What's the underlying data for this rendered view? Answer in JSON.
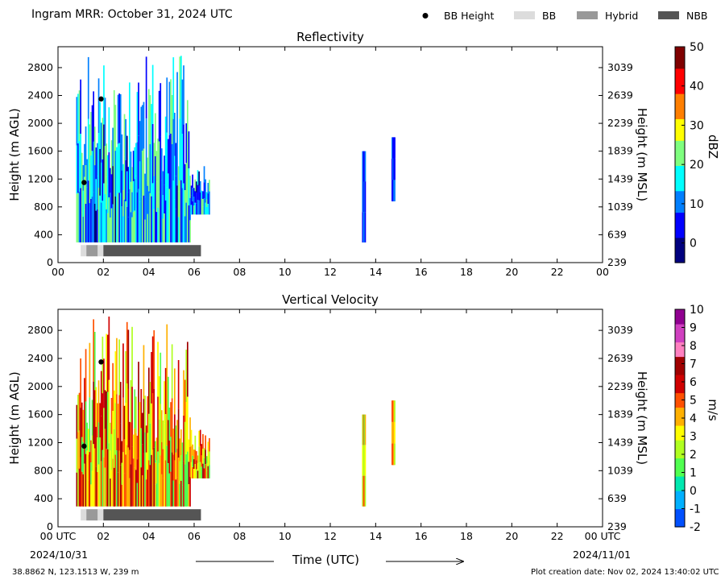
{
  "header": {
    "title": "Ingram MRR:  October 31, 2024 UTC"
  },
  "legend": {
    "placement": "top-right",
    "items": [
      {
        "label": "BB Height",
        "symbol": "dot",
        "color": "#000000"
      },
      {
        "label": "BB",
        "symbol": "box",
        "color": "#dcdcdc"
      },
      {
        "label": "Hybrid",
        "symbol": "box",
        "color": "#999999"
      },
      {
        "label": "NBB",
        "symbol": "box",
        "color": "#555555"
      }
    ]
  },
  "footer": {
    "location": "38.8862 N, 123.1513 W, 239 m",
    "creation": "Plot creation date: Nov 02, 2024 13:40:02 UTC",
    "start_date": "2024/10/31",
    "end_date": "2024/11/01",
    "xlabel": "Time (UTC)"
  },
  "chart_data": [
    {
      "type": "heatmap",
      "title": "Reflectivity",
      "ylabel": "Height (m AGL)",
      "ylabel_right": "Height (m MSL)",
      "xlim": [
        0,
        24
      ],
      "ylim": [
        0,
        3100
      ],
      "x_ticks": [
        "00",
        "02",
        "04",
        "06",
        "08",
        "10",
        "12",
        "14",
        "16",
        "18",
        "20",
        "22",
        "00"
      ],
      "y_ticks": [
        0,
        400,
        800,
        1200,
        1600,
        2000,
        2400,
        2800
      ],
      "y_ticks_right": [
        239,
        639,
        1039,
        1439,
        1839,
        2239,
        2639,
        3039
      ],
      "colorbar": {
        "label": "dBZ",
        "min": -5,
        "max": 50,
        "ticks": [
          0,
          10,
          20,
          30,
          40,
          50
        ],
        "colormap": "jet",
        "colors": [
          "#00007f",
          "#0000ff",
          "#007fff",
          "#00ffff",
          "#7fff7f",
          "#ffff00",
          "#ff7f00",
          "#ff0000",
          "#7f0000"
        ]
      },
      "bb_height_points": [
        {
          "time": 1.15,
          "height": 1150
        },
        {
          "time": 1.9,
          "height": 2350
        }
      ],
      "precip_type_bar": [
        {
          "type": "BB",
          "start": 1.0,
          "end": 1.25
        },
        {
          "type": "Hybrid",
          "start": 1.25,
          "end": 1.75
        },
        {
          "type": "BB",
          "start": 1.75,
          "end": 2.0
        },
        {
          "type": "NBB",
          "start": 2.0,
          "end": 6.3
        }
      ],
      "echo_regions": [
        {
          "start": 0.8,
          "end": 6.7,
          "base": 290,
          "top": 3000
        },
        {
          "start": 13.4,
          "end": 13.55,
          "base": 290,
          "top": 1600
        },
        {
          "start": 14.7,
          "end": 14.85,
          "base": 880,
          "top": 1800
        }
      ]
    },
    {
      "type": "heatmap",
      "title": "Vertical Velocity",
      "ylabel": "Height (m AGL)",
      "ylabel_right": "Height (m MSL)",
      "xlim": [
        0,
        24
      ],
      "ylim": [
        0,
        3100
      ],
      "x_ticks": [
        "00 UTC",
        "02",
        "04",
        "06",
        "08",
        "10",
        "12",
        "14",
        "16",
        "18",
        "20",
        "22",
        "00 UTC"
      ],
      "y_ticks": [
        0,
        400,
        800,
        1200,
        1600,
        2000,
        2400,
        2800
      ],
      "y_ticks_right": [
        239,
        639,
        1039,
        1439,
        1839,
        2239,
        2639,
        3039
      ],
      "colorbar": {
        "label": "m/s",
        "min": -2,
        "max": 10,
        "ticks": [
          -2,
          -1,
          0,
          1,
          2,
          3,
          4,
          5,
          6,
          7,
          8,
          9,
          10
        ],
        "colors": [
          "#0050ff",
          "#00b0ff",
          "#00e8b0",
          "#50ff50",
          "#b0ff20",
          "#ffff00",
          "#ffb000",
          "#ff5000",
          "#d00000",
          "#a00000",
          "#ff80c0",
          "#d040c0",
          "#900090"
        ]
      },
      "bb_height_points": [
        {
          "time": 1.15,
          "height": 1150
        },
        {
          "time": 1.9,
          "height": 2350
        }
      ],
      "precip_type_bar": [
        {
          "type": "BB",
          "start": 1.0,
          "end": 1.25
        },
        {
          "type": "Hybrid",
          "start": 1.25,
          "end": 1.75
        },
        {
          "type": "BB",
          "start": 1.75,
          "end": 2.0
        },
        {
          "type": "NBB",
          "start": 2.0,
          "end": 6.3
        }
      ],
      "echo_regions": [
        {
          "start": 0.8,
          "end": 6.7,
          "base": 290,
          "top": 3000
        },
        {
          "start": 13.4,
          "end": 13.55,
          "base": 290,
          "top": 1600
        },
        {
          "start": 14.7,
          "end": 14.85,
          "base": 880,
          "top": 1800
        }
      ]
    }
  ]
}
